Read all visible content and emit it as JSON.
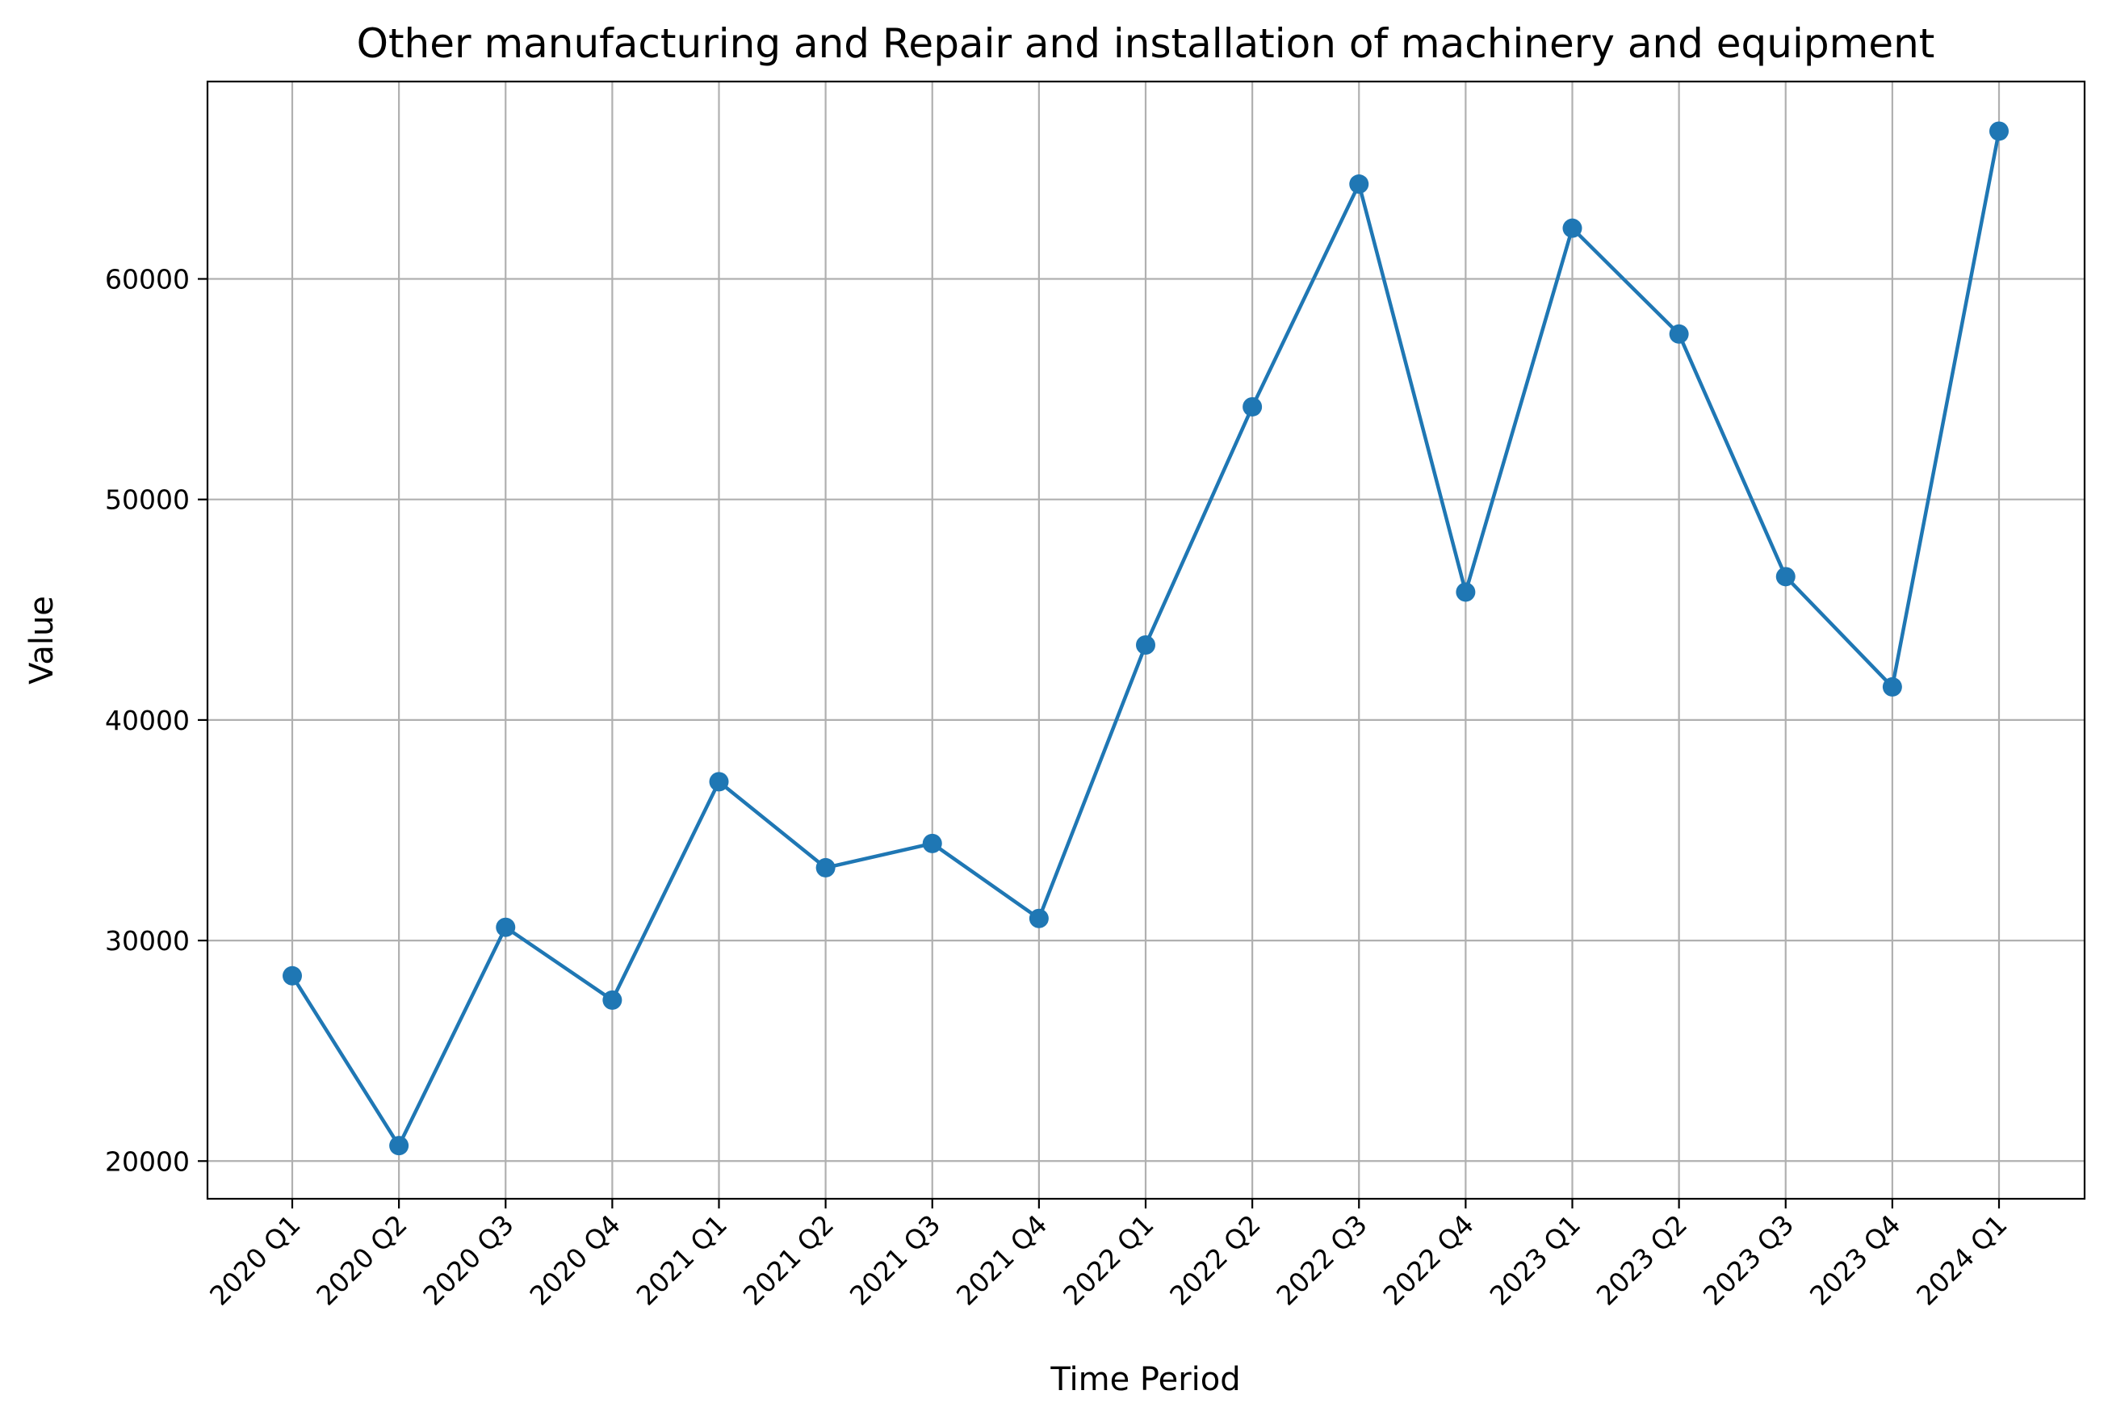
{
  "chart_data": {
    "type": "line",
    "title": "Other manufacturing and Repair and installation of machinery and equipment",
    "xlabel": "Time Period",
    "ylabel": "Value",
    "categories": [
      "2020 Q1",
      "2020 Q2",
      "2020 Q3",
      "2020 Q4",
      "2021 Q1",
      "2021 Q2",
      "2021 Q3",
      "2021 Q4",
      "2022 Q1",
      "2022 Q2",
      "2022 Q3",
      "2022 Q4",
      "2023 Q1",
      "2023 Q2",
      "2023 Q3",
      "2023 Q4",
      "2024 Q1"
    ],
    "series": [
      {
        "values": [
          28400,
          20700,
          30600,
          27300,
          37200,
          33300,
          34400,
          31000,
          43400,
          54200,
          64300,
          45800,
          62300,
          57500,
          46500,
          41500,
          66700
        ],
        "color": "#1f77b4"
      }
    ],
    "yticks": [
      20000,
      30000,
      40000,
      50000,
      60000
    ],
    "ylim": [
      18290,
      68950
    ],
    "grid": true,
    "legend": "none"
  }
}
